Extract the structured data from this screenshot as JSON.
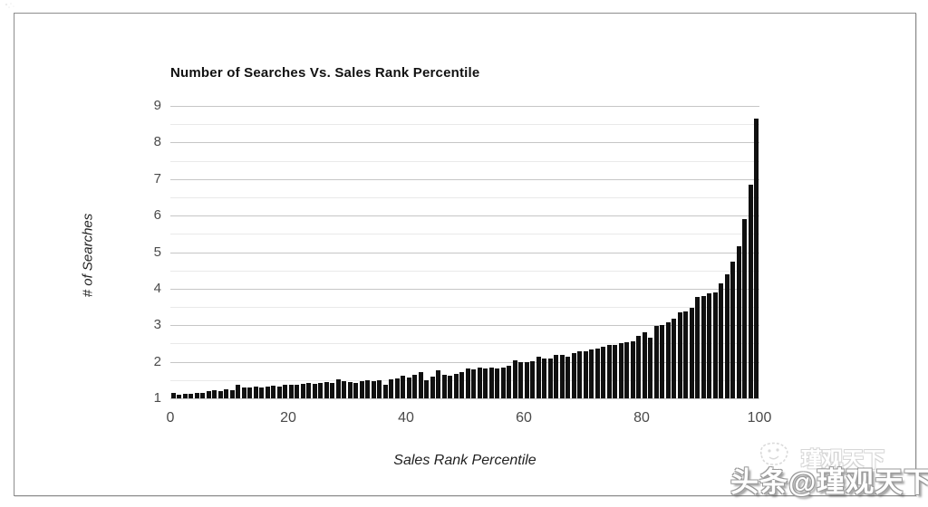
{
  "chart_data": {
    "type": "bar",
    "title": "Number of Searches Vs. Sales Rank Percentile",
    "xlabel": "Sales Rank Percentile",
    "ylabel": "# of Searches",
    "x_start": 1,
    "x_step": 1,
    "values": [
      1.15,
      1.1,
      1.12,
      1.13,
      1.16,
      1.15,
      1.2,
      1.22,
      1.2,
      1.25,
      1.23,
      1.37,
      1.3,
      1.3,
      1.32,
      1.3,
      1.33,
      1.35,
      1.33,
      1.36,
      1.38,
      1.36,
      1.4,
      1.42,
      1.4,
      1.43,
      1.45,
      1.42,
      1.53,
      1.48,
      1.45,
      1.43,
      1.48,
      1.5,
      1.47,
      1.5,
      1.37,
      1.53,
      1.55,
      1.62,
      1.58,
      1.65,
      1.72,
      1.5,
      1.6,
      1.78,
      1.65,
      1.62,
      1.68,
      1.72,
      1.82,
      1.8,
      1.85,
      1.83,
      1.85,
      1.82,
      1.85,
      1.9,
      2.05,
      2.0,
      1.98,
      2.02,
      2.15,
      2.08,
      2.1,
      2.2,
      2.18,
      2.15,
      2.25,
      2.3,
      2.28,
      2.35,
      2.37,
      2.4,
      2.45,
      2.45,
      2.5,
      2.53,
      2.55,
      2.72,
      2.8,
      2.67,
      2.98,
      3.0,
      3.08,
      3.17,
      3.36,
      3.37,
      3.47,
      3.77,
      3.81,
      3.88,
      3.9,
      4.15,
      4.4,
      4.75,
      5.15,
      5.9,
      6.85,
      8.65
    ],
    "x_ticks": [
      0,
      20,
      40,
      60,
      80,
      100
    ],
    "y_ticks": [
      1,
      2,
      3,
      4,
      5,
      6,
      7,
      8,
      9
    ],
    "xlim": [
      0,
      100
    ],
    "ylim": [
      1,
      9
    ],
    "grid": "horizontal major lines at integers, minor lines at 0.5 steps",
    "legend": "none",
    "bar_color": "#101010",
    "major_grid_color": "#c6c6c6",
    "minor_grid_color": "#e9e9e9"
  },
  "watermark": {
    "main_text": "头条@瑾观天下",
    "ghost_text": "瑾观天下",
    "logo": "smiley-face-logo"
  }
}
